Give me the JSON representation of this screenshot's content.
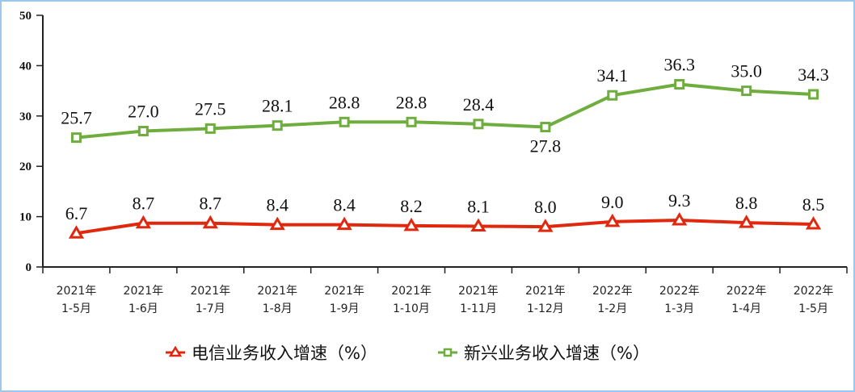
{
  "chart_data": {
    "type": "line",
    "categories": [
      [
        "2021年",
        "1-5月"
      ],
      [
        "2021年",
        "1-6月"
      ],
      [
        "2021年",
        "1-7月"
      ],
      [
        "2021年",
        "1-8月"
      ],
      [
        "2021年",
        "1-9月"
      ],
      [
        "2021年",
        "1-10月"
      ],
      [
        "2021年",
        "1-11月"
      ],
      [
        "2021年",
        "1-12月"
      ],
      [
        "2022年",
        "1-2月"
      ],
      [
        "2022年",
        "1-3月"
      ],
      [
        "2022年",
        "1-4月"
      ],
      [
        "2022年",
        "1-5月"
      ]
    ],
    "ylim": [
      0,
      50
    ],
    "yticks": [
      0,
      10,
      20,
      30,
      40,
      50
    ],
    "grid": false,
    "legend_position": "bottom",
    "series": [
      {
        "name": "电信业务收入增速（%）",
        "color": "#e0280f",
        "marker": "triangle",
        "values": [
          6.7,
          8.7,
          8.7,
          8.4,
          8.4,
          8.2,
          8.1,
          8.0,
          9.0,
          9.3,
          8.8,
          8.5
        ]
      },
      {
        "name": "新兴业务收入增速（%）",
        "color": "#6fad3f",
        "marker": "square",
        "values": [
          25.7,
          27.0,
          27.5,
          28.1,
          28.8,
          28.8,
          28.4,
          27.8,
          34.1,
          36.3,
          35.0,
          34.3
        ]
      }
    ]
  }
}
